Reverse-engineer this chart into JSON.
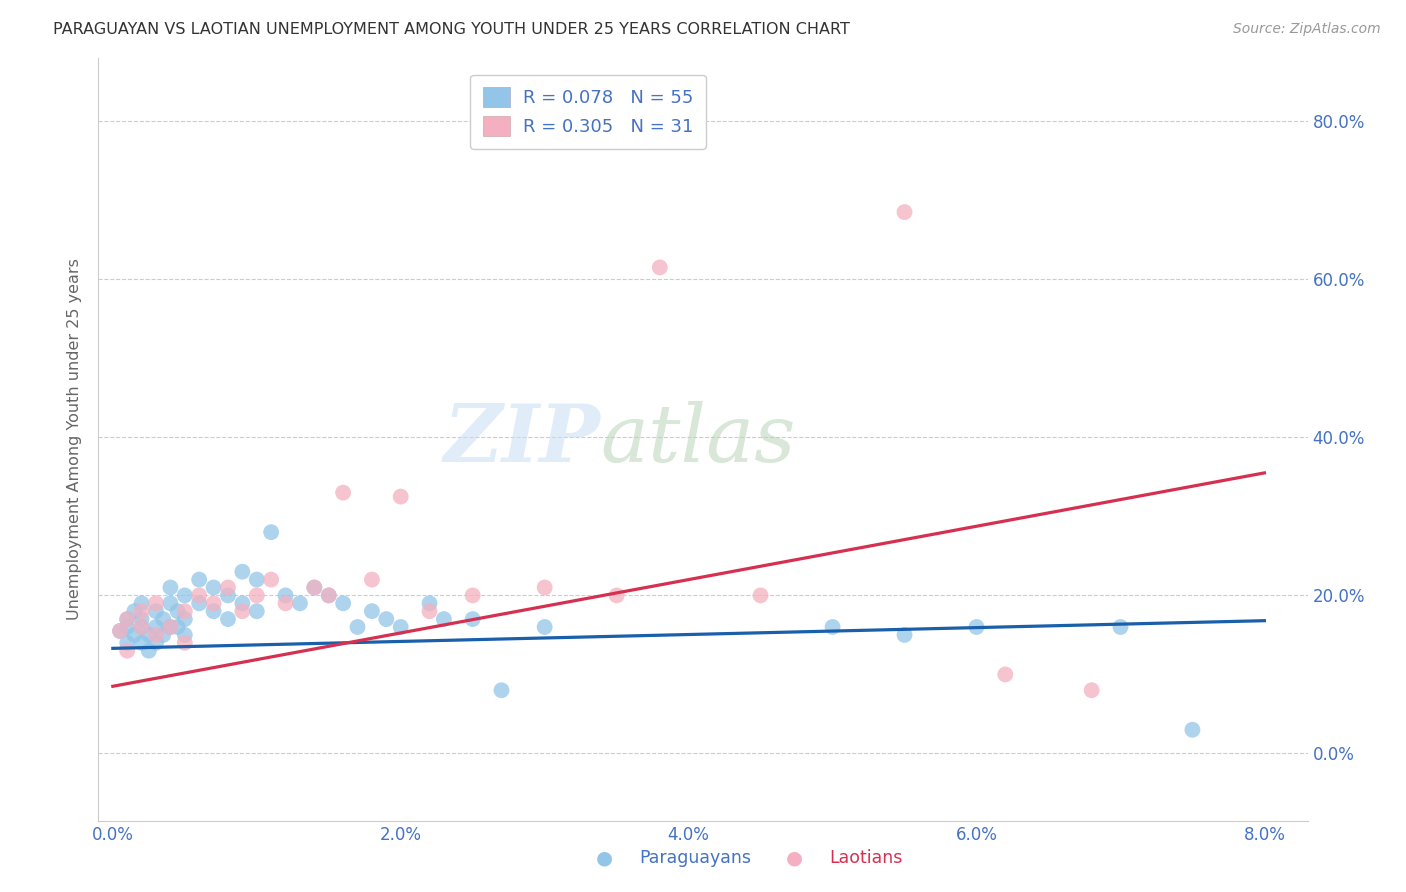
{
  "title": "PARAGUAYAN VS LAOTIAN UNEMPLOYMENT AMONG YOUTH UNDER 25 YEARS CORRELATION CHART",
  "source": "Source: ZipAtlas.com",
  "ylabel_label": "Unemployment Among Youth under 25 years",
  "paraguayan_R": 0.078,
  "paraguayan_N": 55,
  "laotian_R": 0.305,
  "laotian_N": 31,
  "blue_scatter": "#92c5e8",
  "pink_scatter": "#f4b0c0",
  "blue_line": "#1a5faa",
  "pink_line": "#d63050",
  "blue_legend": "#92c5e8",
  "pink_legend": "#f4b0c0",
  "axis_tick_color": "#4472c4",
  "title_color": "#333333",
  "source_color": "#999999",
  "grid_color": "#cccccc",
  "watermark_zip_color": "#c8dff0",
  "watermark_atlas_color": "#d8e8c8",
  "par_x": [
    0.0005,
    0.001,
    0.001,
    0.001,
    0.0015,
    0.0015,
    0.002,
    0.002,
    0.002,
    0.002,
    0.0025,
    0.0025,
    0.003,
    0.003,
    0.003,
    0.0035,
    0.0035,
    0.004,
    0.004,
    0.004,
    0.0045,
    0.0045,
    0.005,
    0.005,
    0.005,
    0.006,
    0.006,
    0.007,
    0.007,
    0.008,
    0.008,
    0.009,
    0.009,
    0.01,
    0.01,
    0.011,
    0.012,
    0.013,
    0.014,
    0.015,
    0.016,
    0.017,
    0.018,
    0.019,
    0.02,
    0.022,
    0.023,
    0.025,
    0.027,
    0.03,
    0.05,
    0.055,
    0.06,
    0.07,
    0.075
  ],
  "par_y": [
    0.155,
    0.17,
    0.14,
    0.16,
    0.15,
    0.18,
    0.16,
    0.14,
    0.17,
    0.19,
    0.15,
    0.13,
    0.16,
    0.18,
    0.14,
    0.17,
    0.15,
    0.16,
    0.19,
    0.21,
    0.18,
    0.16,
    0.2,
    0.17,
    0.15,
    0.22,
    0.19,
    0.21,
    0.18,
    0.2,
    0.17,
    0.19,
    0.23,
    0.22,
    0.18,
    0.28,
    0.2,
    0.19,
    0.21,
    0.2,
    0.19,
    0.16,
    0.18,
    0.17,
    0.16,
    0.19,
    0.17,
    0.17,
    0.08,
    0.16,
    0.16,
    0.15,
    0.16,
    0.16,
    0.03
  ],
  "lao_x": [
    0.0005,
    0.001,
    0.001,
    0.002,
    0.002,
    0.003,
    0.003,
    0.004,
    0.005,
    0.005,
    0.006,
    0.007,
    0.008,
    0.009,
    0.01,
    0.011,
    0.012,
    0.014,
    0.015,
    0.016,
    0.018,
    0.02,
    0.022,
    0.025,
    0.03,
    0.035,
    0.038,
    0.045,
    0.055,
    0.062,
    0.068
  ],
  "lao_y": [
    0.155,
    0.17,
    0.13,
    0.16,
    0.18,
    0.15,
    0.19,
    0.16,
    0.18,
    0.14,
    0.2,
    0.19,
    0.21,
    0.18,
    0.2,
    0.22,
    0.19,
    0.21,
    0.2,
    0.33,
    0.22,
    0.325,
    0.18,
    0.2,
    0.21,
    0.2,
    0.615,
    0.2,
    0.685,
    0.1,
    0.08
  ],
  "par_trend_x": [
    0.0,
    0.08
  ],
  "par_trend_y": [
    0.133,
    0.168
  ],
  "lao_trend_x": [
    0.0,
    0.08
  ],
  "lao_trend_y": [
    0.085,
    0.355
  ],
  "xlim": [
    -0.001,
    0.083
  ],
  "ylim": [
    -0.085,
    0.88
  ],
  "xticks": [
    0.0,
    0.02,
    0.04,
    0.06,
    0.08
  ],
  "yticks": [
    0.0,
    0.2,
    0.4,
    0.6,
    0.8
  ]
}
